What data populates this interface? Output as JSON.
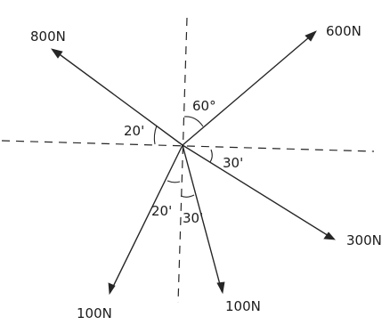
{
  "forces": [
    {
      "id": "f800",
      "label": "800N"
    },
    {
      "id": "f600",
      "label": "600N"
    },
    {
      "id": "f300",
      "label": "300N"
    },
    {
      "id": "f100l",
      "label": "100N"
    },
    {
      "id": "f100r",
      "label": "100N"
    }
  ],
  "angles": [
    {
      "id": "a60",
      "label": "60°"
    },
    {
      "id": "a20l",
      "label": "20'"
    },
    {
      "id": "a30r",
      "label": "30'"
    },
    {
      "id": "a20b",
      "label": "20'"
    },
    {
      "id": "a30b",
      "label": "30'"
    }
  ]
}
